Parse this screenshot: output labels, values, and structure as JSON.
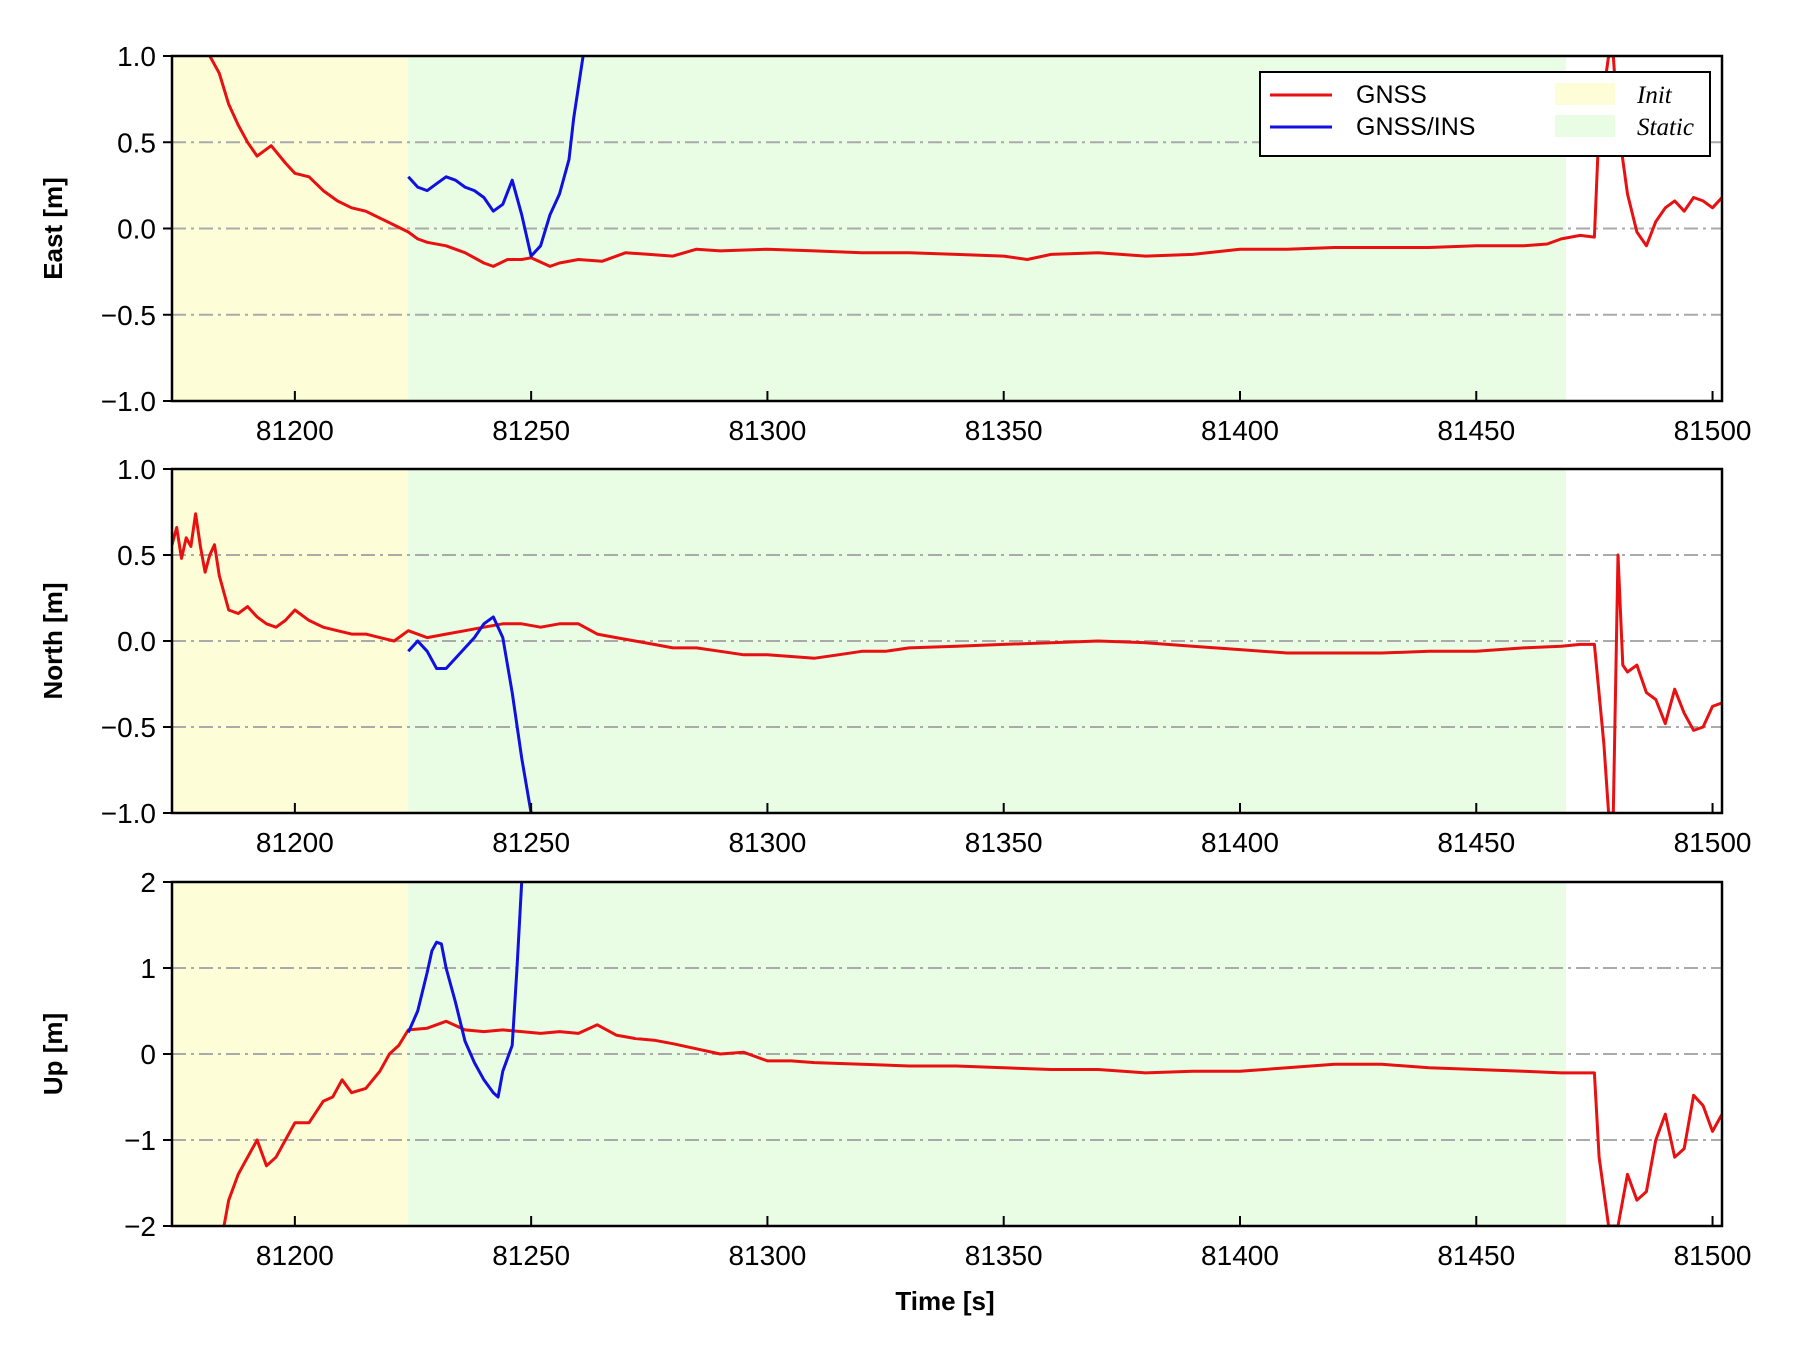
{
  "chart_data": [
    {
      "type": "line",
      "ylabel": "East [m]",
      "xlim": [
        81174,
        81502
      ],
      "ylim": [
        -1.0,
        1.0
      ],
      "xticks": [
        81200,
        81250,
        81300,
        81350,
        81400,
        81450,
        81500
      ],
      "xtick_labels": [
        "81200",
        "81250",
        "81300",
        "81350",
        "81400",
        "81450",
        "81500"
      ],
      "yticks": [
        -1.0,
        -0.5,
        0.0,
        0.5,
        1.0
      ],
      "ytick_labels": [
        "−1.0",
        "−0.5",
        "0.0",
        "0.5",
        "1.0"
      ],
      "grid": "horizontal dash-dot",
      "shaded_regions": [
        {
          "name": "Init",
          "x0": 81174,
          "x1": 81224,
          "color": "#fdfdd8"
        },
        {
          "name": "Static",
          "x0": 81224,
          "x1": 81469,
          "color": "#e8fde4"
        }
      ],
      "series": [
        {
          "name": "GNSS",
          "color": "#e81010",
          "x": [
            81182,
            81184,
            81186,
            81188,
            81190,
            81192,
            81195,
            81198,
            81200,
            81203,
            81206,
            81209,
            81212,
            81215,
            81218,
            81221,
            81224,
            81226,
            81228,
            81232,
            81236,
            81240,
            81242,
            81245,
            81248,
            81250,
            81254,
            81256,
            81260,
            81265,
            81270,
            81275,
            81280,
            81285,
            81290,
            81300,
            81310,
            81320,
            81330,
            81340,
            81350,
            81355,
            81360,
            81370,
            81380,
            81390,
            81400,
            81410,
            81420,
            81430,
            81440,
            81450,
            81460,
            81465,
            81468,
            81472,
            81475,
            81476,
            81478,
            81479,
            81480,
            81482,
            81484,
            81486,
            81488,
            81490,
            81492,
            81494,
            81496,
            81498,
            81500,
            81502
          ],
          "y": [
            1.0,
            0.9,
            0.72,
            0.6,
            0.5,
            0.42,
            0.48,
            0.38,
            0.32,
            0.3,
            0.22,
            0.16,
            0.12,
            0.1,
            0.06,
            0.02,
            -0.02,
            -0.06,
            -0.08,
            -0.1,
            -0.14,
            -0.2,
            -0.22,
            -0.18,
            -0.18,
            -0.17,
            -0.22,
            -0.2,
            -0.18,
            -0.19,
            -0.14,
            -0.15,
            -0.16,
            -0.12,
            -0.13,
            -0.12,
            -0.13,
            -0.14,
            -0.14,
            -0.15,
            -0.16,
            -0.18,
            -0.15,
            -0.14,
            -0.16,
            -0.15,
            -0.12,
            -0.12,
            -0.11,
            -0.11,
            -0.11,
            -0.1,
            -0.1,
            -0.09,
            -0.06,
            -0.04,
            -0.05,
            0.6,
            1.0,
            1.0,
            0.6,
            0.2,
            -0.02,
            -0.1,
            0.04,
            0.12,
            0.16,
            0.1,
            0.18,
            0.16,
            0.12,
            0.18
          ]
        },
        {
          "name": "GNSS/INS",
          "color": "#1010e0",
          "x": [
            81224,
            81226,
            81228,
            81230,
            81232,
            81234,
            81236,
            81238,
            81240,
            81242,
            81244,
            81246,
            81248,
            81250,
            81252,
            81254,
            81256,
            81258,
            81259,
            81261
          ],
          "y": [
            0.3,
            0.24,
            0.22,
            0.26,
            0.3,
            0.28,
            0.24,
            0.22,
            0.18,
            0.1,
            0.14,
            0.28,
            0.08,
            -0.16,
            -0.1,
            0.08,
            0.2,
            0.4,
            0.64,
            1.0
          ]
        }
      ],
      "legend": {
        "position": "top-right",
        "entries": [
          {
            "label": "GNSS",
            "kind": "line",
            "color": "#e81010"
          },
          {
            "label": "GNSS/INS",
            "kind": "line",
            "color": "#1010e0"
          },
          {
            "label": "Init",
            "kind": "patch",
            "color": "#fdfdd8"
          },
          {
            "label": "Static",
            "kind": "patch",
            "color": "#e8fde4"
          }
        ]
      }
    },
    {
      "type": "line",
      "ylabel": "North [m]",
      "xlim": [
        81174,
        81502
      ],
      "ylim": [
        -1.0,
        1.0
      ],
      "xticks": [
        81200,
        81250,
        81300,
        81350,
        81400,
        81450,
        81500
      ],
      "xtick_labels": [
        "81200",
        "81250",
        "81300",
        "81350",
        "81400",
        "81450",
        "81500"
      ],
      "yticks": [
        -1.0,
        -0.5,
        0.0,
        0.5,
        1.0
      ],
      "ytick_labels": [
        "−1.0",
        "−0.5",
        "0.0",
        "0.5",
        "1.0"
      ],
      "grid": "horizontal dash-dot",
      "shaded_regions": [
        {
          "name": "Init",
          "x0": 81174,
          "x1": 81224,
          "color": "#fdfdd8"
        },
        {
          "name": "Static",
          "x0": 81224,
          "x1": 81469,
          "color": "#e8fde4"
        }
      ],
      "series": [
        {
          "name": "GNSS",
          "color": "#e81010",
          "x": [
            81174,
            81175,
            81176,
            81177,
            81178,
            81179,
            81180,
            81181,
            81182,
            81183,
            81184,
            81186,
            81188,
            81190,
            81192,
            81194,
            81196,
            81198,
            81200,
            81203,
            81206,
            81209,
            81212,
            81215,
            81218,
            81221,
            81224,
            81228,
            81232,
            81236,
            81240,
            81244,
            81248,
            81252,
            81256,
            81260,
            81264,
            81268,
            81272,
            81276,
            81280,
            81285,
            81290,
            81295,
            81300,
            81305,
            81310,
            81315,
            81320,
            81325,
            81330,
            81340,
            81350,
            81360,
            81370,
            81380,
            81390,
            81400,
            81410,
            81420,
            81430,
            81440,
            81450,
            81460,
            81468,
            81472,
            81475,
            81477,
            81478,
            81479,
            81480,
            81481,
            81482,
            81484,
            81486,
            81488,
            81490,
            81492,
            81494,
            81496,
            81498,
            81500,
            81502
          ],
          "y": [
            0.56,
            0.66,
            0.48,
            0.6,
            0.55,
            0.74,
            0.55,
            0.4,
            0.5,
            0.56,
            0.38,
            0.18,
            0.16,
            0.2,
            0.14,
            0.1,
            0.08,
            0.12,
            0.18,
            0.12,
            0.08,
            0.06,
            0.04,
            0.04,
            0.02,
            0.0,
            0.06,
            0.02,
            0.04,
            0.06,
            0.08,
            0.1,
            0.1,
            0.08,
            0.1,
            0.1,
            0.04,
            0.02,
            0.0,
            -0.02,
            -0.04,
            -0.04,
            -0.06,
            -0.08,
            -0.08,
            -0.09,
            -0.1,
            -0.08,
            -0.06,
            -0.06,
            -0.04,
            -0.03,
            -0.02,
            -0.01,
            0.0,
            -0.01,
            -0.03,
            -0.05,
            -0.07,
            -0.07,
            -0.07,
            -0.06,
            -0.06,
            -0.04,
            -0.03,
            -0.02,
            -0.02,
            -0.6,
            -1.0,
            -1.0,
            0.5,
            -0.14,
            -0.18,
            -0.14,
            -0.3,
            -0.34,
            -0.48,
            -0.28,
            -0.42,
            -0.52,
            -0.5,
            -0.38,
            -0.36
          ]
        },
        {
          "name": "GNSS/INS",
          "color": "#1010e0",
          "x": [
            81224,
            81226,
            81228,
            81230,
            81232,
            81234,
            81236,
            81238,
            81240,
            81242,
            81244,
            81246,
            81248,
            81250
          ],
          "y": [
            -0.06,
            0.0,
            -0.06,
            -0.16,
            -0.16,
            -0.1,
            -0.04,
            0.02,
            0.1,
            0.14,
            0.02,
            -0.3,
            -0.68,
            -1.0
          ]
        }
      ]
    },
    {
      "type": "line",
      "ylabel": "Up [m]",
      "xlabel": "Time [s]",
      "xlim": [
        81174,
        81502
      ],
      "ylim": [
        -2,
        2
      ],
      "xticks": [
        81200,
        81250,
        81300,
        81350,
        81400,
        81450,
        81500
      ],
      "xtick_labels": [
        "81200",
        "81250",
        "81300",
        "81350",
        "81400",
        "81450",
        "81500"
      ],
      "yticks": [
        -2,
        -1,
        0,
        1,
        2
      ],
      "ytick_labels": [
        "−2",
        "−1",
        "0",
        "1",
        "2"
      ],
      "grid": "horizontal dash-dot",
      "shaded_regions": [
        {
          "name": "Init",
          "x0": 81174,
          "x1": 81224,
          "color": "#fdfdd8"
        },
        {
          "name": "Static",
          "x0": 81224,
          "x1": 81469,
          "color": "#e8fde4"
        }
      ],
      "series": [
        {
          "name": "GNSS",
          "color": "#e81010",
          "x": [
            81185,
            81186,
            81188,
            81190,
            81192,
            81194,
            81196,
            81198,
            81200,
            81203,
            81206,
            81208,
            81210,
            81212,
            81215,
            81218,
            81220,
            81222,
            81224,
            81228,
            81232,
            81236,
            81240,
            81244,
            81248,
            81252,
            81256,
            81260,
            81264,
            81268,
            81272,
            81276,
            81280,
            81285,
            81290,
            81295,
            81300,
            81305,
            81310,
            81320,
            81330,
            81340,
            81350,
            81360,
            81370,
            81380,
            81390,
            81400,
            81410,
            81420,
            81430,
            81440,
            81450,
            81460,
            81468,
            81470,
            81472,
            81474,
            81475,
            81476,
            81478,
            81480,
            81482,
            81484,
            81486,
            81488,
            81490,
            81492,
            81494,
            81496,
            81498,
            81500,
            81502
          ],
          "y": [
            -2.0,
            -1.7,
            -1.4,
            -1.2,
            -1.0,
            -1.3,
            -1.2,
            -1.0,
            -0.8,
            -0.8,
            -0.55,
            -0.5,
            -0.3,
            -0.45,
            -0.4,
            -0.2,
            0.0,
            0.1,
            0.28,
            0.3,
            0.38,
            0.28,
            0.26,
            0.28,
            0.26,
            0.24,
            0.26,
            0.24,
            0.34,
            0.22,
            0.18,
            0.16,
            0.12,
            0.06,
            0.0,
            0.02,
            -0.08,
            -0.08,
            -0.1,
            -0.12,
            -0.14,
            -0.14,
            -0.16,
            -0.18,
            -0.18,
            -0.22,
            -0.2,
            -0.2,
            -0.16,
            -0.12,
            -0.12,
            -0.16,
            -0.18,
            -0.2,
            -0.22,
            -0.22,
            -0.22,
            -0.22,
            -0.22,
            -1.2,
            -2.0,
            -2.0,
            -1.4,
            -1.7,
            -1.6,
            -1.0,
            -0.7,
            -1.2,
            -1.1,
            -0.48,
            -0.6,
            -0.9,
            -0.7
          ]
        },
        {
          "name": "GNSS/INS",
          "color": "#1010e0",
          "x": [
            81224,
            81226,
            81228,
            81229,
            81230,
            81231,
            81232,
            81234,
            81236,
            81238,
            81240,
            81242,
            81243,
            81244,
            81246,
            81247,
            81248
          ],
          "y": [
            0.25,
            0.5,
            0.95,
            1.2,
            1.3,
            1.28,
            1.0,
            0.6,
            0.15,
            -0.1,
            -0.3,
            -0.45,
            -0.5,
            -0.2,
            0.1,
            1.0,
            2.0
          ]
        }
      ]
    }
  ]
}
